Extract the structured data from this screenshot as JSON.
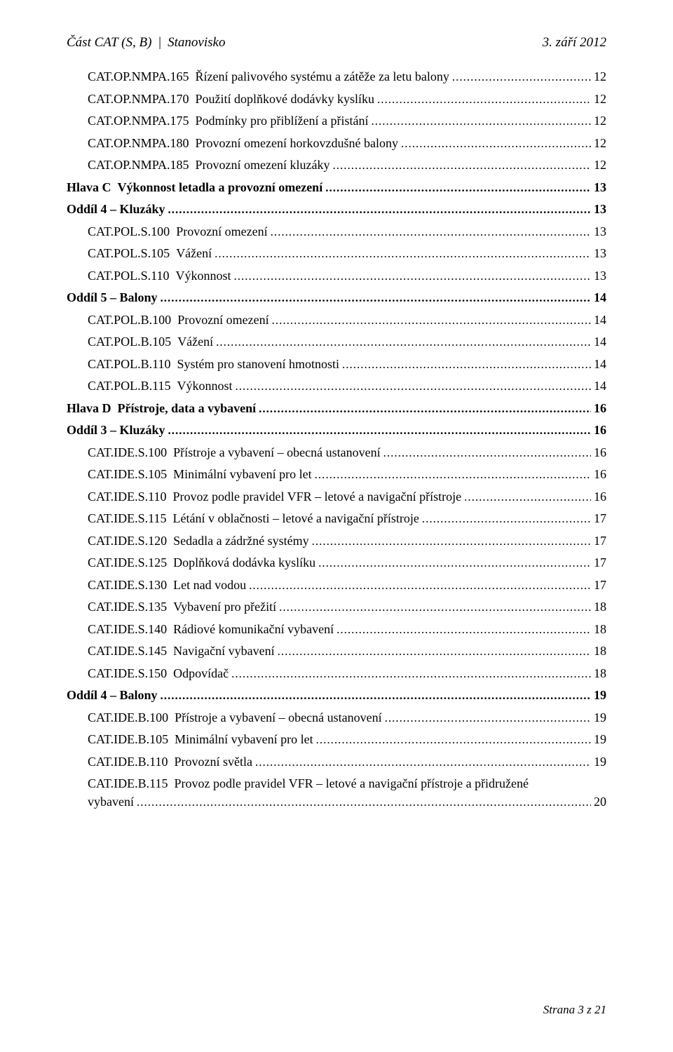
{
  "header": {
    "left_a": "Část CAT (S, B)",
    "bar": "|",
    "left_b": "Stanovisko",
    "right": "3. září 2012"
  },
  "footer": "Strana 3 z 21",
  "toc": [
    {
      "indent": 1,
      "bold": false,
      "label": "CAT.OP.NMPA.165",
      "title": "Řízení palivového systému a zátěže za letu balony",
      "page": "12"
    },
    {
      "indent": 1,
      "bold": false,
      "label": "CAT.OP.NMPA.170",
      "title": "Použití doplňkové dodávky kyslíku",
      "page": "12"
    },
    {
      "indent": 1,
      "bold": false,
      "label": "CAT.OP.NMPA.175",
      "title": "Podmínky pro přiblížení a přistání",
      "page": "12"
    },
    {
      "indent": 1,
      "bold": false,
      "label": "CAT.OP.NMPA.180",
      "title": "Provozní omezení horkovzdušné balony",
      "page": "12"
    },
    {
      "indent": 1,
      "bold": false,
      "label": "CAT.OP.NMPA.185",
      "title": "Provozní omezení kluzáky",
      "page": "12"
    },
    {
      "indent": 0,
      "bold": true,
      "label": "Hlava C",
      "title": "Výkonnost letadla a provozní omezení",
      "page": "13"
    },
    {
      "indent": 0,
      "bold": true,
      "label": "Oddíl 4 – Kluzáky",
      "title": "",
      "page": "13"
    },
    {
      "indent": 1,
      "bold": false,
      "label": "CAT.POL.S.100",
      "title": "Provozní omezení",
      "page": "13"
    },
    {
      "indent": 1,
      "bold": false,
      "label": "CAT.POL.S.105",
      "title": "Vážení",
      "page": "13"
    },
    {
      "indent": 1,
      "bold": false,
      "label": "CAT.POL.S.110",
      "title": "Výkonnost",
      "page": "13"
    },
    {
      "indent": 0,
      "bold": true,
      "label": "Oddíl 5 – Balony",
      "title": "",
      "page": "14"
    },
    {
      "indent": 1,
      "bold": false,
      "label": "CAT.POL.B.100",
      "title": "Provozní omezení",
      "page": "14"
    },
    {
      "indent": 1,
      "bold": false,
      "label": "CAT.POL.B.105",
      "title": "Vážení",
      "page": "14"
    },
    {
      "indent": 1,
      "bold": false,
      "label": "CAT.POL.B.110",
      "title": "Systém pro stanovení hmotnosti",
      "page": "14"
    },
    {
      "indent": 1,
      "bold": false,
      "label": "CAT.POL.B.115",
      "title": "Výkonnost",
      "page": "14"
    },
    {
      "indent": 0,
      "bold": true,
      "label": "Hlava D",
      "title": "Přístroje, data a vybavení",
      "page": "16"
    },
    {
      "indent": 0,
      "bold": true,
      "label": "Oddíl 3 – Kluzáky",
      "title": "",
      "page": "16"
    },
    {
      "indent": 1,
      "bold": false,
      "label": "CAT.IDE.S.100",
      "title": "Přístroje a vybavení – obecná ustanovení",
      "page": "16"
    },
    {
      "indent": 1,
      "bold": false,
      "label": "CAT.IDE.S.105",
      "title": "Minimální vybavení pro let",
      "page": "16"
    },
    {
      "indent": 1,
      "bold": false,
      "label": "CAT.IDE.S.110",
      "title": "Provoz podle pravidel VFR – letové a navigační přístroje",
      "page": "16"
    },
    {
      "indent": 1,
      "bold": false,
      "label": "CAT.IDE.S.115",
      "title": "Létání v oblačnosti – letové a navigační přístroje",
      "page": "17"
    },
    {
      "indent": 1,
      "bold": false,
      "label": "CAT.IDE.S.120",
      "title": "Sedadla a zádržné systémy",
      "page": "17"
    },
    {
      "indent": 1,
      "bold": false,
      "label": "CAT.IDE.S.125",
      "title": "Doplňková dodávka kyslíku",
      "page": "17"
    },
    {
      "indent": 1,
      "bold": false,
      "label": "CAT.IDE.S.130",
      "title": "Let nad vodou",
      "page": "17"
    },
    {
      "indent": 1,
      "bold": false,
      "label": "CAT.IDE.S.135",
      "title": "Vybavení pro přežití",
      "page": "18"
    },
    {
      "indent": 1,
      "bold": false,
      "label": "CAT.IDE.S.140",
      "title": "Rádiové komunikační vybavení",
      "page": "18"
    },
    {
      "indent": 1,
      "bold": false,
      "label": "CAT.IDE.S.145",
      "title": "Navigační vybavení",
      "page": "18"
    },
    {
      "indent": 1,
      "bold": false,
      "label": "CAT.IDE.S.150",
      "title": "Odpovídač",
      "page": "18"
    },
    {
      "indent": 0,
      "bold": true,
      "label": "Oddíl 4 – Balony",
      "title": "",
      "page": "19"
    },
    {
      "indent": 1,
      "bold": false,
      "label": "CAT.IDE.B.100",
      "title": "Přístroje a vybavení – obecná ustanovení",
      "page": "19"
    },
    {
      "indent": 1,
      "bold": false,
      "label": "CAT.IDE.B.105",
      "title": "Minimální vybavení pro let",
      "page": "19"
    },
    {
      "indent": 1,
      "bold": false,
      "label": "CAT.IDE.B.110",
      "title": "Provozní světla",
      "page": "19"
    },
    {
      "indent": 1,
      "bold": false,
      "label": "CAT.IDE.B.115",
      "title": "Provoz podle pravidel VFR – letové a navigační přístroje a přidružené",
      "page": "",
      "wrap": true
    },
    {
      "indent": 1,
      "bold": false,
      "label": "vybavení",
      "title": "",
      "page": "20",
      "wrapcont": true
    }
  ]
}
